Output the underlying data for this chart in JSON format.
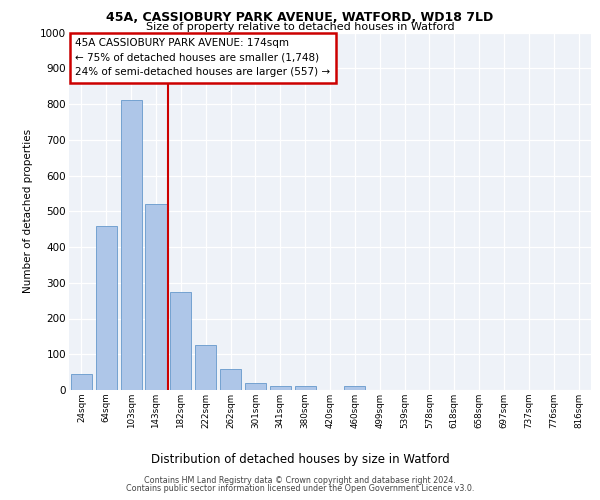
{
  "title_line1": "45A, CASSIOBURY PARK AVENUE, WATFORD, WD18 7LD",
  "title_line2": "Size of property relative to detached houses in Watford",
  "xlabel": "Distribution of detached houses by size in Watford",
  "ylabel": "Number of detached properties",
  "categories": [
    "24sqm",
    "64sqm",
    "103sqm",
    "143sqm",
    "182sqm",
    "222sqm",
    "262sqm",
    "301sqm",
    "341sqm",
    "380sqm",
    "420sqm",
    "460sqm",
    "499sqm",
    "539sqm",
    "578sqm",
    "618sqm",
    "658sqm",
    "697sqm",
    "737sqm",
    "776sqm",
    "816sqm"
  ],
  "values": [
    45,
    460,
    810,
    520,
    275,
    125,
    58,
    20,
    12,
    12,
    0,
    12,
    0,
    0,
    0,
    0,
    0,
    0,
    0,
    0,
    0
  ],
  "bar_color": "#aec6e8",
  "bar_edge_color": "#6699cc",
  "vline_color": "#cc0000",
  "ylim": [
    0,
    1000
  ],
  "yticks": [
    0,
    100,
    200,
    300,
    400,
    500,
    600,
    700,
    800,
    900,
    1000
  ],
  "annotation_text": "45A CASSIOBURY PARK AVENUE: 174sqm\n← 75% of detached houses are smaller (1,748)\n24% of semi-detached houses are larger (557) →",
  "annotation_box_color": "#ffffff",
  "annotation_box_edge": "#cc0000",
  "footer_line1": "Contains HM Land Registry data © Crown copyright and database right 2024.",
  "footer_line2": "Contains public sector information licensed under the Open Government Licence v3.0.",
  "plot_bg_color": "#eef2f8",
  "vline_position": 3.5
}
